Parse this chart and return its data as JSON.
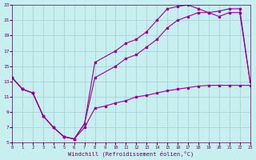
{
  "bg_color": "#c8eff0",
  "grid_color": "#a0cdd4",
  "line_color": "#990099",
  "xlim": [
    0,
    23
  ],
  "ylim": [
    5,
    23
  ],
  "xticks": [
    0,
    1,
    2,
    3,
    4,
    5,
    6,
    7,
    8,
    9,
    10,
    11,
    12,
    13,
    14,
    15,
    16,
    17,
    18,
    19,
    20,
    21,
    22,
    23
  ],
  "yticks": [
    5,
    7,
    9,
    11,
    13,
    15,
    17,
    19,
    21,
    23
  ],
  "xlabel": "Windchill (Refroidissement éolien,°C)",
  "line1_x": [
    0,
    1,
    2,
    3,
    4,
    5,
    6,
    7,
    8,
    9,
    10,
    11,
    12,
    13,
    14,
    15,
    16,
    17,
    18,
    19,
    20,
    21,
    22,
    23
  ],
  "line1_y": [
    13.5,
    12.0,
    11.5,
    8.5,
    7.0,
    5.8,
    5.5,
    7.0,
    9.5,
    9.8,
    10.2,
    10.5,
    11.0,
    11.2,
    11.5,
    11.8,
    12.0,
    12.2,
    12.4,
    12.5,
    12.5,
    12.5,
    12.5,
    12.5
  ],
  "line2_x": [
    0,
    1,
    2,
    3,
    4,
    5,
    6,
    7,
    8,
    10,
    11,
    12,
    13,
    14,
    15,
    16,
    17,
    18,
    19,
    20,
    21,
    22,
    23
  ],
  "line2_y": [
    13.5,
    12.0,
    11.5,
    8.5,
    7.0,
    5.8,
    5.5,
    7.5,
    15.5,
    17.0,
    18.0,
    18.5,
    19.5,
    21.0,
    22.5,
    22.8,
    23.0,
    22.5,
    22.0,
    22.2,
    22.5,
    22.5,
    13.0
  ],
  "line3_x": [
    0,
    1,
    2,
    3,
    4,
    5,
    6,
    7,
    8,
    10,
    11,
    12,
    13,
    14,
    15,
    16,
    17,
    18,
    19,
    20,
    21,
    22,
    23
  ],
  "line3_y": [
    13.5,
    12.0,
    11.5,
    8.5,
    7.0,
    5.8,
    5.5,
    7.5,
    13.5,
    15.0,
    16.0,
    16.5,
    17.5,
    18.5,
    20.0,
    21.0,
    21.5,
    22.0,
    22.0,
    21.5,
    22.0,
    22.0,
    13.0
  ]
}
